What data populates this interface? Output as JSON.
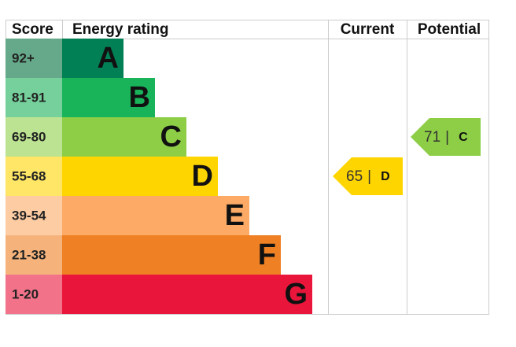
{
  "header": {
    "score": "Score",
    "rating": "Energy rating",
    "current": "Current",
    "potential": "Potential"
  },
  "bands": [
    {
      "score": "92+",
      "letter": "A",
      "color": "#008054",
      "score_color": "#66a98a"
    },
    {
      "score": "81-91",
      "letter": "B",
      "color": "#19b459",
      "score_color": "#75d09b"
    },
    {
      "score": "69-80",
      "letter": "C",
      "color": "#8dce46",
      "score_color": "#bce391"
    },
    {
      "score": "55-68",
      "letter": "D",
      "color": "#ffd500",
      "score_color": "#ffe666"
    },
    {
      "score": "39-54",
      "letter": "E",
      "color": "#fcaa65",
      "score_color": "#fdcca3"
    },
    {
      "score": "21-38",
      "letter": "F",
      "color": "#ef8023",
      "score_color": "#f5b37b"
    },
    {
      "score": "1-20",
      "letter": "G",
      "color": "#e9153b",
      "score_color": "#f27389"
    }
  ],
  "separator": "|",
  "current": {
    "value": 65,
    "letter": "D"
  },
  "potential": {
    "value": 71,
    "letter": "C"
  }
}
